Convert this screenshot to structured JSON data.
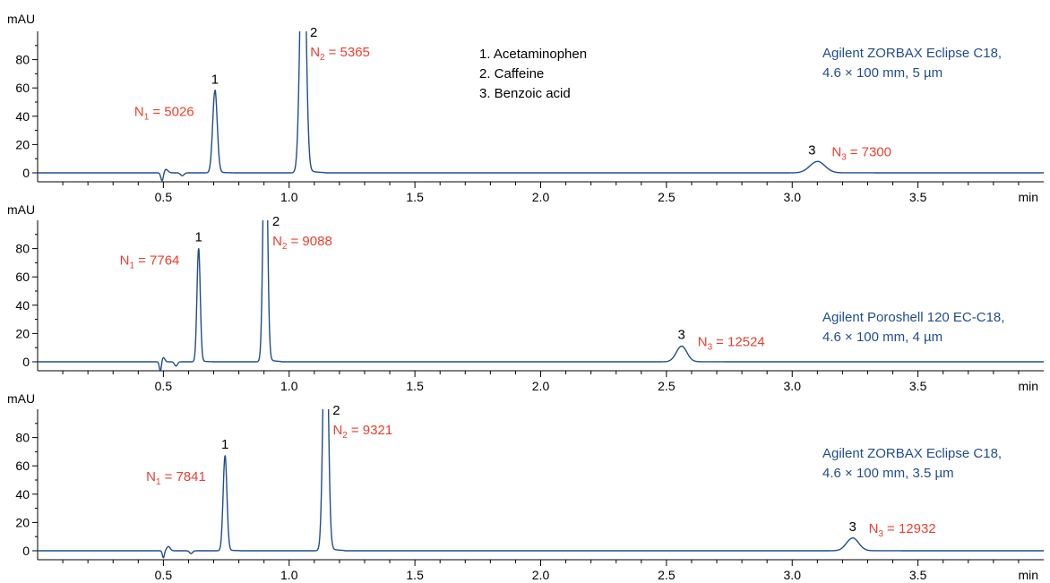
{
  "chart_data": [
    {
      "type": "line",
      "xlabel": "min",
      "ylabel": "mAU",
      "xlim": [
        0,
        4.0
      ],
      "ylim": [
        -5,
        100
      ],
      "xticks": [
        0.5,
        1.0,
        1.5,
        2.0,
        2.5,
        3.0,
        3.5
      ],
      "xtick_labels": [
        "0.5",
        "1.0",
        "1.5",
        "2.0",
        "2.5",
        "3.0",
        "3.5"
      ],
      "yticks": [
        0,
        20,
        40,
        60,
        80
      ],
      "ytick_labels": [
        "0",
        "20",
        "40",
        "60",
        "80"
      ],
      "column": [
        "Agilent ZORBAX Eclipse C18,",
        "4.6 × 100 mm, 5 µm"
      ],
      "legend": [
        "1.  Acetaminophen",
        "2.  Caffeine",
        "3.  Benzoic acid"
      ],
      "disturbances": [
        {
          "t": 0.495,
          "h": -6,
          "w": 0.005
        },
        {
          "t": 0.51,
          "h": 2.5,
          "w": 0.008
        },
        {
          "t": 0.575,
          "h": -2,
          "w": 0.007
        }
      ],
      "peaks": [
        {
          "id": "1",
          "t": 0.705,
          "height": 58,
          "width": 0.009,
          "plates_label": "N",
          "plates_sub": "1",
          "plates_value": "= 5026"
        },
        {
          "id": "2",
          "t": 1.055,
          "height": 200,
          "width": 0.011,
          "plates_label": "N",
          "plates_sub": "2",
          "plates_value": "= 5365"
        },
        {
          "id": "3",
          "t": 3.1,
          "height": 8,
          "width": 0.03,
          "plates_label": "N",
          "plates_sub": "3",
          "plates_value": "= 7300"
        }
      ]
    },
    {
      "type": "line",
      "xlabel": "min",
      "ylabel": "mAU",
      "xlim": [
        0,
        4.0
      ],
      "ylim": [
        -5,
        100
      ],
      "xticks": [
        0.5,
        1.0,
        1.5,
        2.0,
        2.5,
        3.0,
        3.5
      ],
      "xtick_labels": [
        "0.5",
        "1.0",
        "1.5",
        "2.0",
        "2.5",
        "3.0",
        "3.5"
      ],
      "yticks": [
        0,
        20,
        40,
        60,
        80
      ],
      "ytick_labels": [
        "0",
        "20",
        "40",
        "60",
        "80"
      ],
      "column": [
        "Agilent Poroshell 120 EC-C18,",
        "4.6 × 100 mm, 4 µm"
      ],
      "disturbances": [
        {
          "t": 0.488,
          "h": -7,
          "w": 0.004
        },
        {
          "t": 0.5,
          "h": 3,
          "w": 0.006
        },
        {
          "t": 0.55,
          "h": -3,
          "w": 0.006
        }
      ],
      "peaks": [
        {
          "id": "1",
          "t": 0.64,
          "height": 80,
          "width": 0.0065,
          "plates_label": "N",
          "plates_sub": "1",
          "plates_value": "= 7764"
        },
        {
          "id": "2",
          "t": 0.905,
          "height": 200,
          "width": 0.008,
          "plates_label": "N",
          "plates_sub": "2",
          "plates_value": "= 9088"
        },
        {
          "id": "3",
          "t": 2.56,
          "height": 11,
          "width": 0.021,
          "plates_label": "N",
          "plates_sub": "3",
          "plates_value": "= 12524"
        }
      ]
    },
    {
      "type": "line",
      "xlabel": "min",
      "ylabel": "mAU",
      "xlim": [
        0,
        4.0
      ],
      "ylim": [
        -5,
        100
      ],
      "xticks": [
        0.5,
        1.0,
        1.5,
        2.0,
        2.5,
        3.0,
        3.5
      ],
      "xtick_labels": [
        "0.5",
        "1.0",
        "1.5",
        "2.0",
        "2.5",
        "3.0",
        "3.5"
      ],
      "yticks": [
        0,
        20,
        40,
        60,
        80
      ],
      "ytick_labels": [
        "0",
        "20",
        "40",
        "60",
        "80"
      ],
      "column": [
        "Agilent ZORBAX Eclipse C18,",
        "4.6 × 100 mm, 3.5 µm"
      ],
      "disturbances": [
        {
          "t": 0.5,
          "h": -5,
          "w": 0.004
        },
        {
          "t": 0.52,
          "h": 3,
          "w": 0.007
        },
        {
          "t": 0.61,
          "h": -2,
          "w": 0.006
        }
      ],
      "peaks": [
        {
          "id": "1",
          "t": 0.745,
          "height": 67,
          "width": 0.0075,
          "plates_label": "N",
          "plates_sub": "1",
          "plates_value": "= 7841"
        },
        {
          "id": "2",
          "t": 1.145,
          "height": 200,
          "width": 0.0095,
          "plates_label": "N",
          "plates_sub": "2",
          "plates_value": "= 9321"
        },
        {
          "id": "3",
          "t": 3.24,
          "height": 9,
          "width": 0.024,
          "plates_label": "N",
          "plates_sub": "3",
          "plates_value": "= 12932"
        }
      ]
    }
  ],
  "colors": {
    "trace": "#1f4e8c",
    "plates": "#e8402f",
    "column_text": "#1f4e8c",
    "axis": "#000000"
  }
}
